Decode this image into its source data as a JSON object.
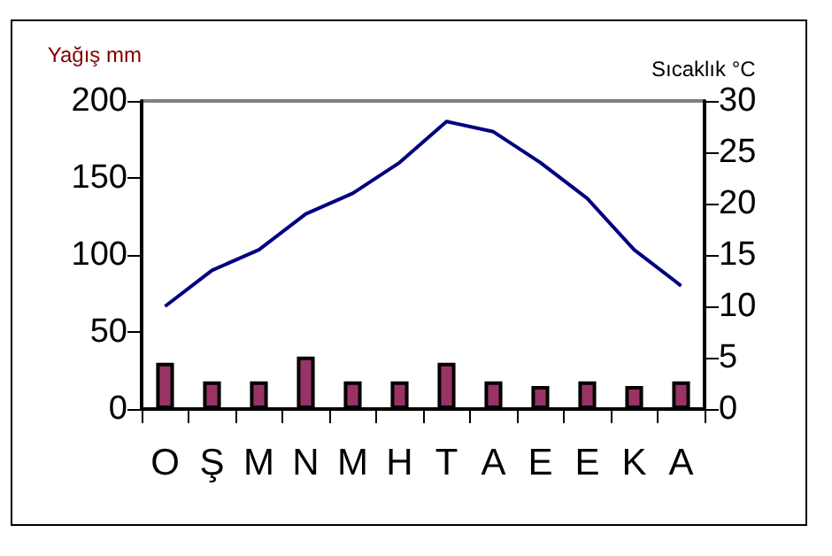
{
  "chart_data": {
    "type": "bar",
    "ylabel": "Yağış mm",
    "y2label": "Sıcaklık °C",
    "categories": [
      "O",
      "Ş",
      "M",
      "N",
      "M",
      "H",
      "T",
      "A",
      "E",
      "E",
      "K",
      "A"
    ],
    "series": [
      {
        "color": "#993366",
        "values": [
          30,
          18,
          18,
          34,
          18,
          18,
          30,
          18,
          15,
          18,
          15,
          18
        ]
      },
      {
        "type": "line",
        "axis": "y2",
        "color": "#000080",
        "marker": "none",
        "values": [
          10,
          13.5,
          15.5,
          19,
          21,
          24,
          28,
          27,
          24,
          20.5,
          15.5,
          12
        ]
      }
    ],
    "ylim": [
      0,
      200
    ],
    "yticks": [
      0,
      50,
      100,
      150,
      200
    ],
    "y2lim": [
      0,
      30
    ],
    "y2ticks": [
      0,
      5,
      10,
      15,
      20,
      25,
      30
    ],
    "grid": false
  }
}
